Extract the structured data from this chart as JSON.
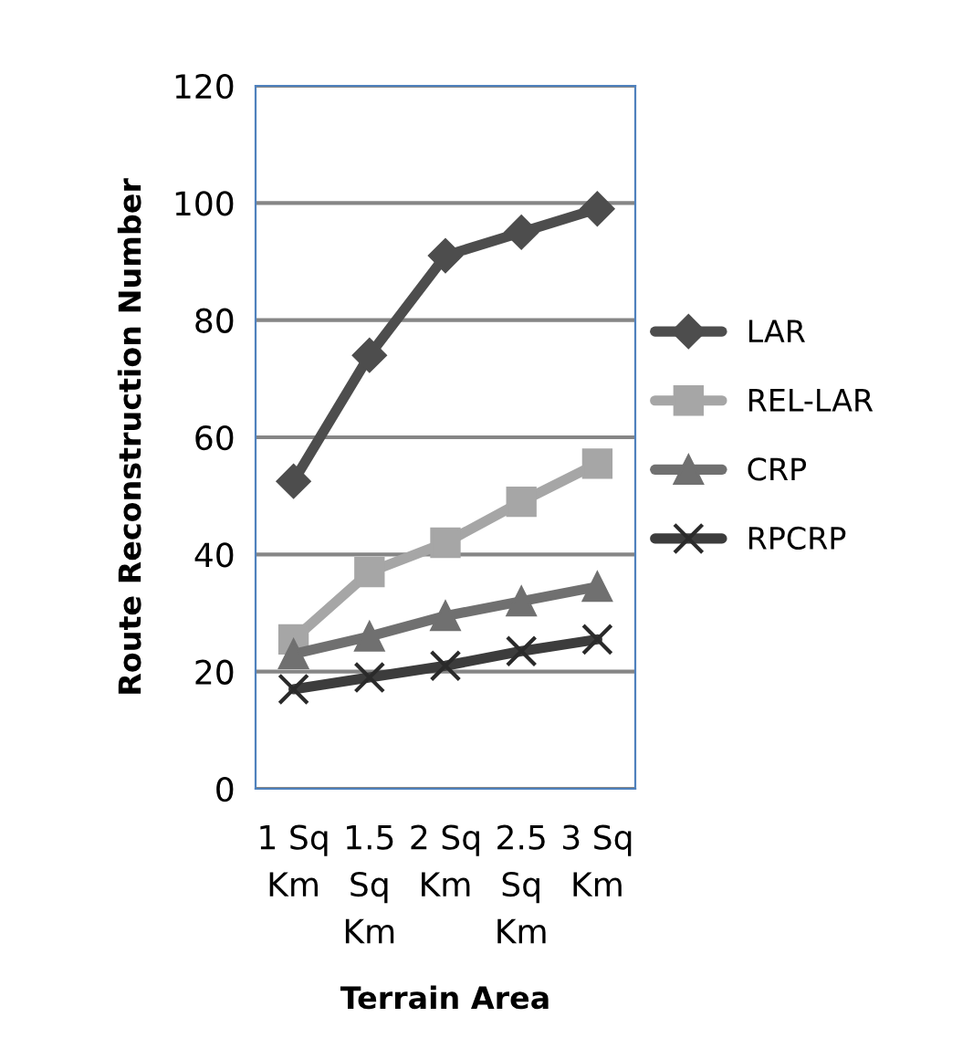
{
  "chart_data": {
    "type": "line",
    "xlabel": "Terrain Area",
    "ylabel": "Route Reconstruction Number",
    "categories": [
      "1 Sq Km",
      "1.5 Sq Km",
      "2 Sq Km",
      "2.5 Sq Km",
      "3 Sq Km"
    ],
    "series": [
      {
        "name": "LAR",
        "color": "#4d4d4d",
        "marker": "diamond",
        "values": [
          52.5,
          74,
          91,
          95,
          99
        ]
      },
      {
        "name": "REL-LAR",
        "color": "#a6a6a6",
        "marker": "square",
        "values": [
          25.5,
          37,
          42,
          49,
          55.5
        ]
      },
      {
        "name": "CRP",
        "color": "#707070",
        "marker": "triangle",
        "values": [
          23,
          26,
          29.5,
          32,
          34.5
        ]
      },
      {
        "name": "RPCRP",
        "color": "#3c3c3c",
        "marker": "cross",
        "values": [
          17,
          19,
          21,
          23.5,
          25.5
        ]
      }
    ],
    "ylim": [
      0,
      120
    ],
    "yticks": [
      0,
      20,
      40,
      60,
      80,
      100,
      120
    ],
    "grid": "y",
    "legend": "right"
  }
}
